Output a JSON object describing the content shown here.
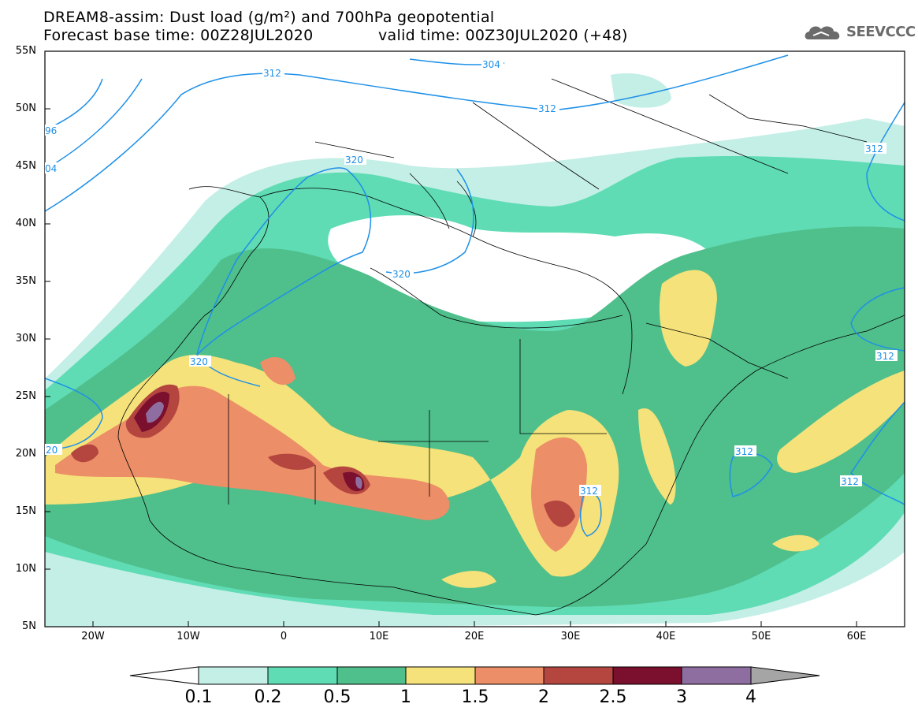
{
  "header": {
    "title_line1": "DREAM8-assim: Dust load (g/m²) and 700hPa geopotential",
    "title_line2": "Forecast base time: 00Z28JUL2020",
    "title_line3": "valid time: 00Z30JUL2020 (+48)",
    "logo_text": "SEEVCCC"
  },
  "axes": {
    "lat_labels": [
      "55N",
      "50N",
      "45N",
      "40N",
      "35N",
      "30N",
      "25N",
      "20N",
      "15N",
      "10N",
      "5N"
    ],
    "lon_labels": [
      "20W",
      "10W",
      "0",
      "10E",
      "20E",
      "30E",
      "40E",
      "50E",
      "60E"
    ]
  },
  "contour_labels": [
    "312",
    "304",
    "312",
    "96",
    "04",
    "320",
    "320",
    "320",
    "20",
    "312",
    "312",
    "312",
    "312",
    "312"
  ],
  "colorbar": {
    "labels": [
      "0.1",
      "0.2",
      "0.5",
      "1",
      "1.5",
      "2",
      "2.5",
      "3",
      "4"
    ],
    "colors": [
      "#c4efe6",
      "#5fdcb4",
      "#4fbf8c",
      "#f5e27a",
      "#ec8e67",
      "#b4463f",
      "#7a0f2e",
      "#8e6ea0",
      "#a5a5a5"
    ]
  },
  "map_colors": {
    "contour": "#1e90e8",
    "border": "#000000"
  }
}
